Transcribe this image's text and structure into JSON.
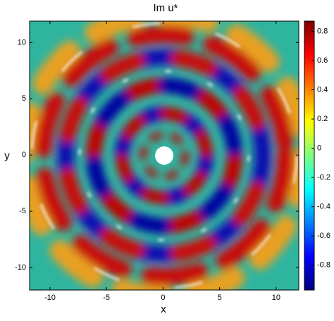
{
  "chart_data": {
    "type": "heatmap",
    "title": "Im u*",
    "xlabel": "x",
    "ylabel": "y",
    "xlim": [
      -11.8,
      12
    ],
    "ylim": [
      -12,
      11.9
    ],
    "xticks": [
      -10,
      -5,
      0,
      5,
      10
    ],
    "yticks": [
      -10,
      -5,
      0,
      5,
      10
    ],
    "colorbar": {
      "clim": [
        -0.97,
        0.87
      ],
      "ticks": [
        -0.8,
        -0.6,
        -0.4,
        -0.2,
        0,
        0.2,
        0.4,
        0.6,
        0.8
      ],
      "colors": [
        "#00007f",
        "#0000ff",
        "#0080ff",
        "#00ffff",
        "#80ff80",
        "#ffff00",
        "#ff8000",
        "#ff0000",
        "#7f0000"
      ]
    }
  }
}
